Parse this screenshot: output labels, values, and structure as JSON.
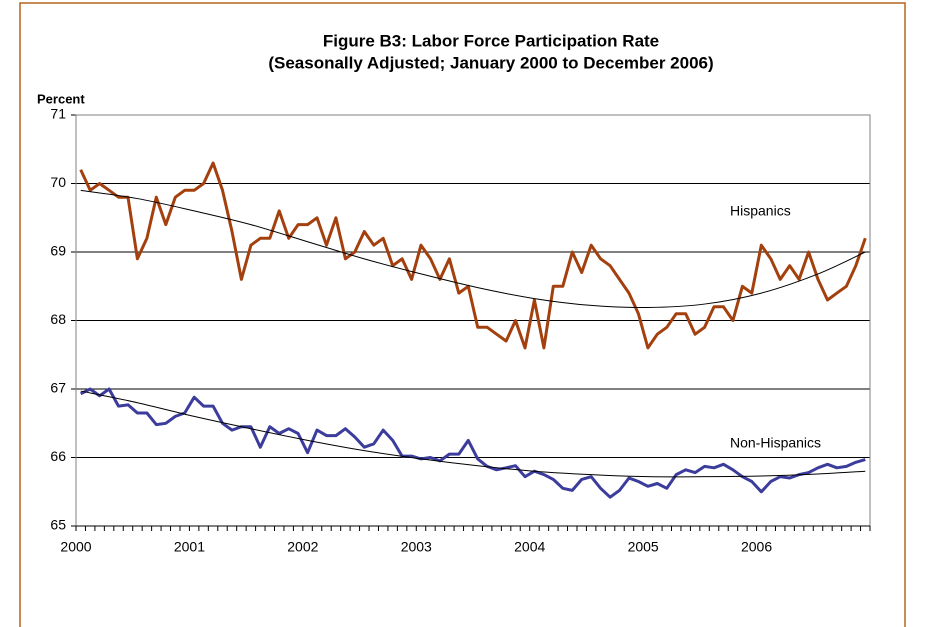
{
  "chart_data": {
    "type": "line",
    "title": "Figure B3: Labor Force Participation Rate",
    "subtitle": "(Seasonally Adjusted; January 2000 to December 2006)",
    "y_label": "Percent",
    "categories": [
      "2000",
      null,
      null,
      null,
      null,
      null,
      null,
      null,
      null,
      null,
      null,
      null,
      "2001",
      null,
      null,
      null,
      null,
      null,
      null,
      null,
      null,
      null,
      null,
      null,
      "2002",
      null,
      null,
      null,
      null,
      null,
      null,
      null,
      null,
      null,
      null,
      null,
      "2003",
      null,
      null,
      null,
      null,
      null,
      null,
      null,
      null,
      null,
      null,
      null,
      "2004",
      null,
      null,
      null,
      null,
      null,
      null,
      null,
      null,
      null,
      null,
      null,
      "2005",
      null,
      null,
      null,
      null,
      null,
      null,
      null,
      null,
      null,
      null,
      null,
      "2006",
      null,
      null,
      null,
      null,
      null,
      null,
      null,
      null,
      null,
      null,
      null
    ],
    "ylim": [
      65,
      71
    ],
    "yticks": [
      65,
      66,
      67,
      68,
      69,
      70,
      71
    ],
    "grid": true,
    "series": [
      {
        "name": "Hispanics",
        "color": "#a3400e",
        "values": [
          70.2,
          69.9,
          70.0,
          69.9,
          69.8,
          69.8,
          68.9,
          69.2,
          69.8,
          69.4,
          69.8,
          69.9,
          69.9,
          70.0,
          70.3,
          69.9,
          69.3,
          68.6,
          69.1,
          69.2,
          69.2,
          69.6,
          69.2,
          69.4,
          69.4,
          69.5,
          69.1,
          69.5,
          68.9,
          69.0,
          69.3,
          69.1,
          69.2,
          68.8,
          68.9,
          68.6,
          69.1,
          68.9,
          68.6,
          68.9,
          68.4,
          68.5,
          67.9,
          67.9,
          67.8,
          67.7,
          68.0,
          67.6,
          68.3,
          67.6,
          68.5,
          68.5,
          69.0,
          68.7,
          69.1,
          68.9,
          68.8,
          68.6,
          68.4,
          68.1,
          67.6,
          67.8,
          67.9,
          68.1,
          68.1,
          67.8,
          67.9,
          68.2,
          68.2,
          68.0,
          68.5,
          68.4,
          69.1,
          68.9,
          68.6,
          68.8,
          68.6,
          69.0,
          68.6,
          68.3,
          68.4,
          68.5,
          68.8,
          69.2
        ],
        "trend": {
          "color": "#000000",
          "x": [
            0,
            6,
            12,
            18,
            24,
            30,
            36,
            42,
            48,
            54,
            60,
            66,
            72,
            78,
            83
          ],
          "values": [
            69.9,
            69.78,
            69.6,
            69.4,
            69.15,
            68.9,
            68.68,
            68.48,
            68.32,
            68.22,
            68.19,
            68.24,
            68.4,
            68.68,
            69.0
          ]
        }
      },
      {
        "name": "Non-Hispanics",
        "color": "#3c3c9c",
        "values": [
          66.93,
          67.0,
          66.9,
          67.0,
          66.75,
          66.77,
          66.65,
          66.65,
          66.48,
          66.5,
          66.6,
          66.65,
          66.88,
          66.75,
          66.75,
          66.5,
          66.4,
          66.45,
          66.45,
          66.15,
          66.45,
          66.35,
          66.42,
          66.35,
          66.07,
          66.4,
          66.32,
          66.32,
          66.42,
          66.3,
          66.15,
          66.2,
          66.4,
          66.25,
          66.02,
          66.02,
          65.98,
          66.0,
          65.95,
          66.05,
          66.05,
          66.25,
          65.98,
          65.87,
          65.82,
          65.85,
          65.88,
          65.72,
          65.8,
          65.75,
          65.68,
          65.55,
          65.52,
          65.68,
          65.72,
          65.55,
          65.42,
          65.52,
          65.7,
          65.65,
          65.58,
          65.62,
          65.55,
          65.75,
          65.82,
          65.78,
          65.87,
          65.85,
          65.9,
          65.82,
          65.72,
          65.65,
          65.5,
          65.65,
          65.72,
          65.7,
          65.75,
          65.78,
          65.85,
          65.9,
          65.85,
          65.87,
          65.93,
          65.97
        ],
        "trend": {
          "color": "#000000",
          "x": [
            0,
            6,
            12,
            18,
            24,
            30,
            36,
            42,
            48,
            54,
            60,
            66,
            72,
            78,
            83
          ],
          "values": [
            66.97,
            66.8,
            66.6,
            66.42,
            66.25,
            66.1,
            65.98,
            65.88,
            65.8,
            65.75,
            65.72,
            65.72,
            65.73,
            65.76,
            65.8
          ]
        }
      }
    ]
  }
}
